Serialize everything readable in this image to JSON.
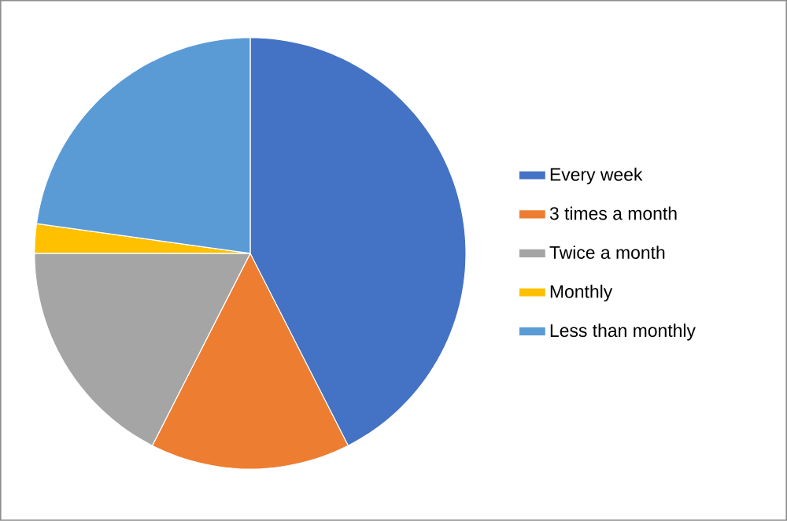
{
  "chart_data": {
    "type": "pie",
    "categories": [
      "Every week",
      "3 times a month",
      "Twice a month",
      "Monthly",
      "Less than monthly"
    ],
    "values": [
      42.5,
      15,
      17.5,
      2.2,
      22.8
    ],
    "colors": [
      "#4472c4",
      "#ed7d31",
      "#a5a5a5",
      "#ffc000",
      "#5b9bd5"
    ],
    "legend": "right"
  }
}
